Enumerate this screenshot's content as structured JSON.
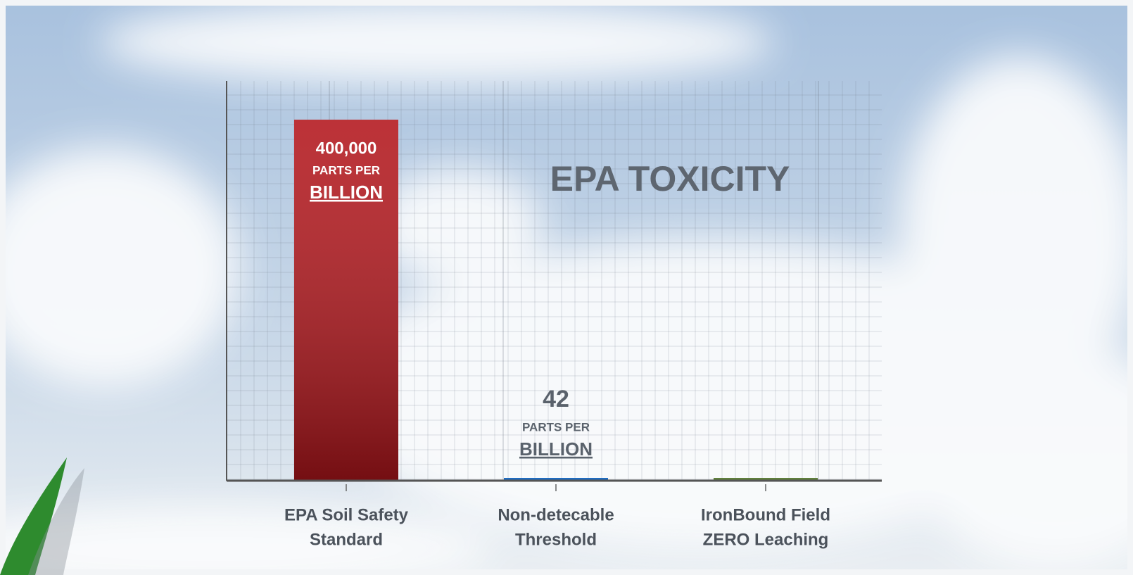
{
  "chart_data": {
    "type": "bar",
    "title": "EPA TOXICITY",
    "categories": [
      [
        "EPA Soil Safety",
        "Standard"
      ],
      [
        "Non-detecable",
        "Threshold"
      ],
      [
        "IronBound Field",
        "ZERO Leaching"
      ]
    ],
    "values": [
      400000,
      42,
      0
    ],
    "value_labels": [
      "400,000",
      "42",
      null
    ],
    "value_unit_lines": [
      "PARTS PER",
      "BILLION"
    ],
    "colors": [
      "#b3161c",
      "#1f6cc0",
      "#5f7f3c"
    ],
    "ylim": [
      0,
      443000
    ]
  }
}
